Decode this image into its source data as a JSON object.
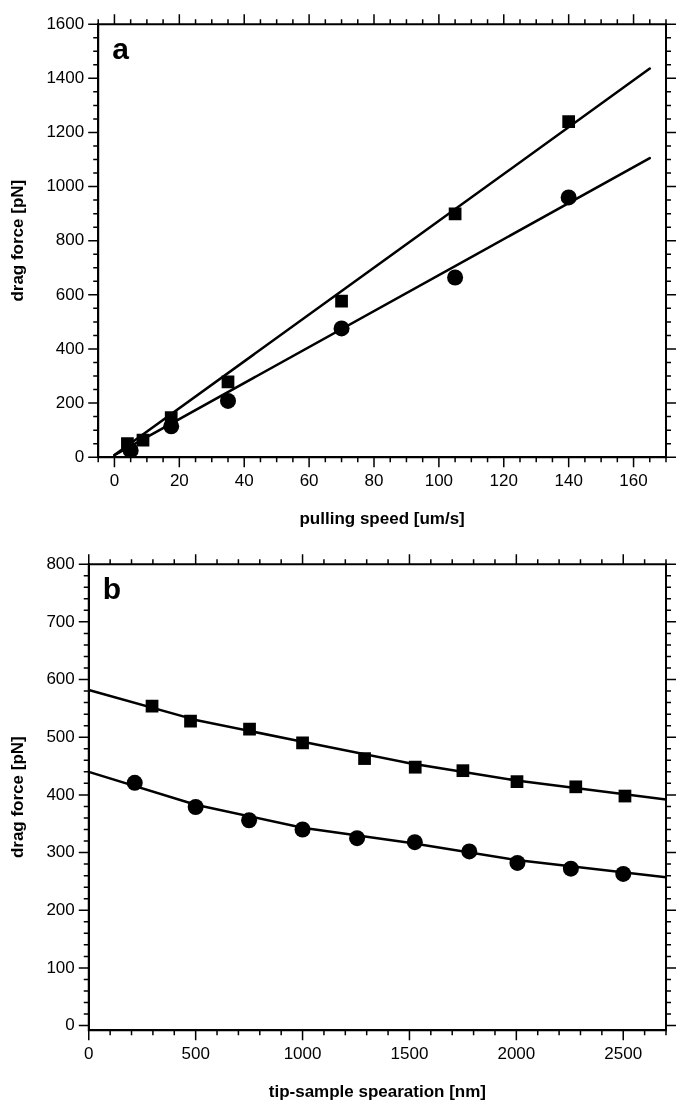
{
  "chart_data": [
    {
      "type": "scatter",
      "annotations": [
        "a"
      ],
      "xlabel": "pulling speed [um/s]",
      "ylabel": "drag force [pN]",
      "xlim": [
        -5,
        170
      ],
      "ylim": [
        0,
        1600
      ],
      "xticks": [
        {
          "value": -5,
          "label": null
        },
        0,
        {
          "value": 5,
          "label": null
        },
        {
          "value": 10,
          "label": null
        },
        {
          "value": 15,
          "label": null
        },
        20,
        {
          "value": 25,
          "label": null
        },
        {
          "value": 30,
          "label": null
        },
        {
          "value": 35,
          "label": null
        },
        40,
        {
          "value": 45,
          "label": null
        },
        {
          "value": 50,
          "label": null
        },
        {
          "value": 55,
          "label": null
        },
        60,
        {
          "value": 65,
          "label": null
        },
        {
          "value": 70,
          "label": null
        },
        {
          "value": 75,
          "label": null
        },
        80,
        {
          "value": 85,
          "label": null
        },
        {
          "value": 90,
          "label": null
        },
        {
          "value": 95,
          "label": null
        },
        100,
        {
          "value": 105,
          "label": null
        },
        {
          "value": 110,
          "label": null
        },
        {
          "value": 115,
          "label": null
        },
        120,
        {
          "value": 125,
          "label": null
        },
        {
          "value": 130,
          "label": null
        },
        {
          "value": 135,
          "label": null
        },
        140,
        {
          "value": 145,
          "label": null
        },
        {
          "value": 150,
          "label": null
        },
        {
          "value": 155,
          "label": null
        },
        160,
        {
          "value": 165,
          "label": null
        },
        {
          "value": 170,
          "label": null
        }
      ],
      "yticks": [
        0,
        {
          "value": 50,
          "label": null
        },
        {
          "value": 100,
          "label": null
        },
        {
          "value": 150,
          "label": null
        },
        200,
        {
          "value": 250,
          "label": null
        },
        {
          "value": 300,
          "label": null
        },
        {
          "value": 350,
          "label": null
        },
        400,
        {
          "value": 450,
          "label": null
        },
        {
          "value": 500,
          "label": null
        },
        {
          "value": 550,
          "label": null
        },
        600,
        {
          "value": 650,
          "label": null
        },
        {
          "value": 700,
          "label": null
        },
        {
          "value": 750,
          "label": null
        },
        800,
        {
          "value": 850,
          "label": null
        },
        {
          "value": 900,
          "label": null
        },
        {
          "value": 950,
          "label": null
        },
        1000,
        {
          "value": 1050,
          "label": null
        },
        {
          "value": 1100,
          "label": null
        },
        {
          "value": 1150,
          "label": null
        },
        1200,
        {
          "value": 1250,
          "label": null
        },
        {
          "value": 1300,
          "label": null
        },
        {
          "value": 1350,
          "label": null
        },
        1400,
        {
          "value": 1450,
          "label": null
        },
        {
          "value": 1500,
          "label": null
        },
        {
          "value": 1550,
          "label": null
        },
        1600
      ],
      "series": [
        {
          "type": "scatter",
          "marker": "square",
          "color": "#000000",
          "x": [
            4,
            8.8,
            17.5,
            35,
            70,
            105,
            140
          ],
          "values": [
            50,
            63,
            146,
            278,
            577,
            899,
            1240
          ]
        },
        {
          "type": "scatter",
          "marker": "circle",
          "color": "#000000",
          "x": [
            5,
            17.5,
            35,
            70,
            105,
            140
          ],
          "values": [
            25,
            114,
            208,
            476,
            664,
            960
          ]
        },
        {
          "type": "line",
          "marker": "none",
          "color": "#000000",
          "x": [
            0,
            165
          ],
          "values": [
            8,
            1436
          ]
        },
        {
          "type": "line",
          "marker": "none",
          "color": "#000000",
          "x": [
            0,
            165
          ],
          "values": [
            8,
            1105
          ]
        }
      ]
    },
    {
      "type": "scatter",
      "annotations": [
        "b"
      ],
      "xlabel": "tip-sample spearation [nm]",
      "ylabel": "drag force [pN]",
      "xlim": [
        0,
        2700
      ],
      "ylim": [
        -8,
        800
      ],
      "xticks": [
        0,
        {
          "value": 100,
          "label": null
        },
        {
          "value": 200,
          "label": null
        },
        {
          "value": 300,
          "label": null
        },
        {
          "value": 400,
          "label": null
        },
        500,
        {
          "value": 600,
          "label": null
        },
        {
          "value": 700,
          "label": null
        },
        {
          "value": 800,
          "label": null
        },
        {
          "value": 900,
          "label": null
        },
        1000,
        {
          "value": 1100,
          "label": null
        },
        {
          "value": 1200,
          "label": null
        },
        {
          "value": 1300,
          "label": null
        },
        {
          "value": 1400,
          "label": null
        },
        1500,
        {
          "value": 1600,
          "label": null
        },
        {
          "value": 1700,
          "label": null
        },
        {
          "value": 1800,
          "label": null
        },
        {
          "value": 1900,
          "label": null
        },
        2000,
        {
          "value": 2100,
          "label": null
        },
        {
          "value": 2200,
          "label": null
        },
        {
          "value": 2300,
          "label": null
        },
        {
          "value": 2400,
          "label": null
        },
        2500,
        {
          "value": 2600,
          "label": null
        },
        {
          "value": 2700,
          "label": null
        }
      ],
      "yticks": [
        0,
        {
          "value": 20,
          "label": null
        },
        {
          "value": 40,
          "label": null
        },
        {
          "value": 60,
          "label": null
        },
        {
          "value": 80,
          "label": null
        },
        100,
        {
          "value": 120,
          "label": null
        },
        {
          "value": 140,
          "label": null
        },
        {
          "value": 160,
          "label": null
        },
        {
          "value": 180,
          "label": null
        },
        200,
        {
          "value": 220,
          "label": null
        },
        {
          "value": 240,
          "label": null
        },
        {
          "value": 260,
          "label": null
        },
        {
          "value": 280,
          "label": null
        },
        300,
        {
          "value": 320,
          "label": null
        },
        {
          "value": 340,
          "label": null
        },
        {
          "value": 360,
          "label": null
        },
        {
          "value": 380,
          "label": null
        },
        400,
        {
          "value": 420,
          "label": null
        },
        {
          "value": 440,
          "label": null
        },
        {
          "value": 460,
          "label": null
        },
        {
          "value": 480,
          "label": null
        },
        500,
        {
          "value": 520,
          "label": null
        },
        {
          "value": 540,
          "label": null
        },
        {
          "value": 560,
          "label": null
        },
        {
          "value": 580,
          "label": null
        },
        600,
        {
          "value": 620,
          "label": null
        },
        {
          "value": 640,
          "label": null
        },
        {
          "value": 660,
          "label": null
        },
        {
          "value": 680,
          "label": null
        },
        700,
        {
          "value": 720,
          "label": null
        },
        {
          "value": 740,
          "label": null
        },
        {
          "value": 760,
          "label": null
        },
        {
          "value": 780,
          "label": null
        },
        800
      ],
      "series": [
        {
          "type": "scatter",
          "marker": "square",
          "color": "#000000",
          "x": [
            296,
            476,
            752,
            1000,
            1290,
            1527,
            1750,
            2003,
            2278,
            2508
          ],
          "values": [
            554,
            528,
            514,
            490,
            463,
            448,
            442,
            423,
            414,
            398
          ]
        },
        {
          "type": "scatter",
          "marker": "circle",
          "color": "#000000",
          "x": [
            215,
            500,
            750,
            1000,
            1255,
            1525,
            1780,
            2005,
            2255,
            2500
          ],
          "values": [
            421,
            379,
            356,
            340,
            325,
            318,
            302,
            282,
            272,
            263
          ]
        },
        {
          "type": "line",
          "marker": "none",
          "color": "#000000",
          "x": [
            0,
            500,
            1000,
            1500,
            2000,
            2700
          ],
          "values": [
            582,
            530,
            492,
            455,
            425,
            392
          ]
        },
        {
          "type": "line",
          "marker": "none",
          "color": "#000000",
          "x": [
            0,
            500,
            1000,
            1500,
            2000,
            2700
          ],
          "values": [
            440,
            383,
            343,
            317,
            287,
            257
          ]
        }
      ]
    }
  ]
}
